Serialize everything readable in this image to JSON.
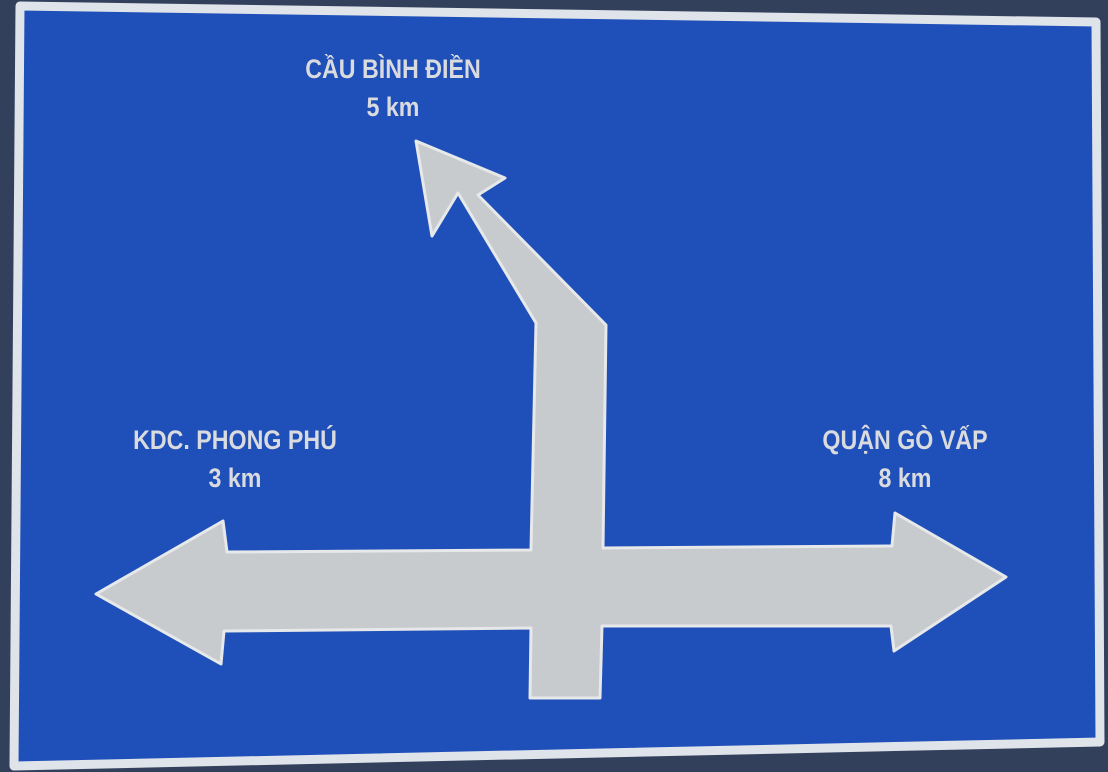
{
  "sign": {
    "colors": {
      "background": "#1f4fb8",
      "border": "#dfe3ea",
      "arrow": "#c9cccf",
      "text": "#d9dbdf"
    },
    "destinations": {
      "up": {
        "name": "CẦU BÌNH ĐIỀN",
        "distance": "5 km"
      },
      "left": {
        "name": "KDC. PHONG PHÚ",
        "distance": "3 km"
      },
      "right": {
        "name": "QUẬN GÒ VẤP",
        "distance": "8 km"
      }
    }
  }
}
